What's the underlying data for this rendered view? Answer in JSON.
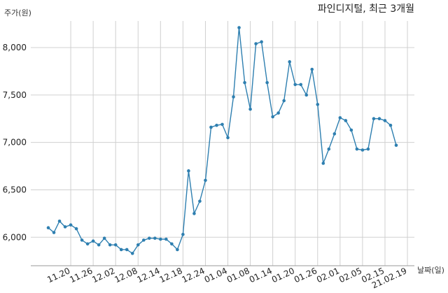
{
  "chart_data": {
    "type": "line",
    "title": "파인디지털, 최근 3개월",
    "ylabel": "주가(원)",
    "xlabel": "날짜(일)",
    "ylim": [
      5700,
      8280
    ],
    "yticks": [
      6000,
      6500,
      7000,
      7500,
      8000
    ],
    "ytick_labels": [
      "6,000",
      "6,500",
      "7,000",
      "7,500",
      "8,000"
    ],
    "xtick_labels": [
      "11.20",
      "11.26",
      "12.02",
      "12.08",
      "12.14",
      "12.18",
      "12.24",
      "01.04",
      "01.08",
      "01.14",
      "01.20",
      "01.26",
      "02.01",
      "02.05",
      "02.15",
      "21.02.19"
    ],
    "xtick_index": [
      4,
      8,
      12,
      16,
      20,
      24,
      28,
      32,
      36,
      40,
      44,
      48,
      52,
      56,
      60,
      64
    ],
    "grid": true,
    "color": "#2e7fb0",
    "values": [
      6100,
      6050,
      6170,
      6110,
      6130,
      6090,
      5970,
      5930,
      5960,
      5920,
      5990,
      5920,
      5920,
      5870,
      5870,
      5830,
      5920,
      5970,
      5990,
      5990,
      5980,
      5980,
      5930,
      5870,
      6030,
      6700,
      6250,
      6380,
      6600,
      7160,
      7180,
      7190,
      7050,
      7480,
      8210,
      7630,
      7350,
      8040,
      8060,
      7630,
      7270,
      7310,
      7440,
      7850,
      7610,
      7610,
      7500,
      7770,
      7400,
      6780,
      6930,
      7090,
      7260,
      7230,
      7130,
      6930,
      6920,
      6930,
      7250,
      7250,
      7230,
      7180,
      6970
    ]
  }
}
